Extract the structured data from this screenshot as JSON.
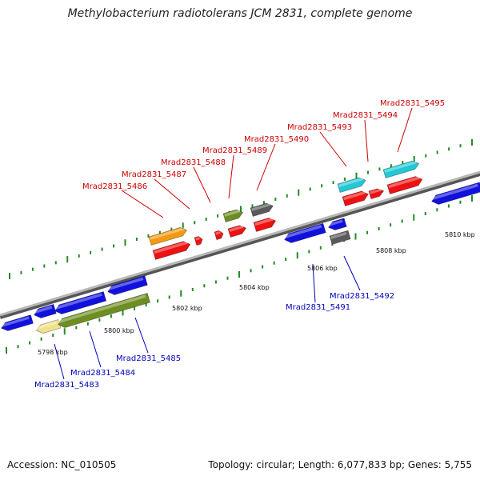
{
  "title": "Methylobacterium radiotolerans JCM 2831, complete genome",
  "footer": {
    "accession": "Accession: NC_010505",
    "info": "Topology: circular; Length: 6,077,833 bp; Genes: 5,755"
  },
  "colors": {
    "backbone": "#888888",
    "tick": "#228b22",
    "top_label": "#cc0000",
    "bottom_label": "#0000bb",
    "red": "#ee1111",
    "blue": "#1111dd",
    "orange": "#f39a12",
    "olive": "#6e8e22",
    "grey": "#5a5a5a",
    "cyan": "#22c8d4",
    "pale_yellow": "#f1e28a"
  },
  "ticks": [
    "5798 kbp",
    "5800 kbp",
    "5802 kbp",
    "5804 kbp",
    "5806 kbp",
    "5808 kbp",
    "5810 kbp"
  ],
  "genes": {
    "top": [
      "Mrad2831_5486",
      "Mrad2831_5487",
      "Mrad2831_5488",
      "Mrad2831_5489",
      "Mrad2831_5490",
      "Mrad2831_5493",
      "Mrad2831_5494",
      "Mrad2831_5495"
    ],
    "bottom": [
      "Mrad2831_5483",
      "Mrad2831_5484",
      "Mrad2831_5485",
      "Mrad2831_5491",
      "Mrad2831_5492"
    ]
  }
}
